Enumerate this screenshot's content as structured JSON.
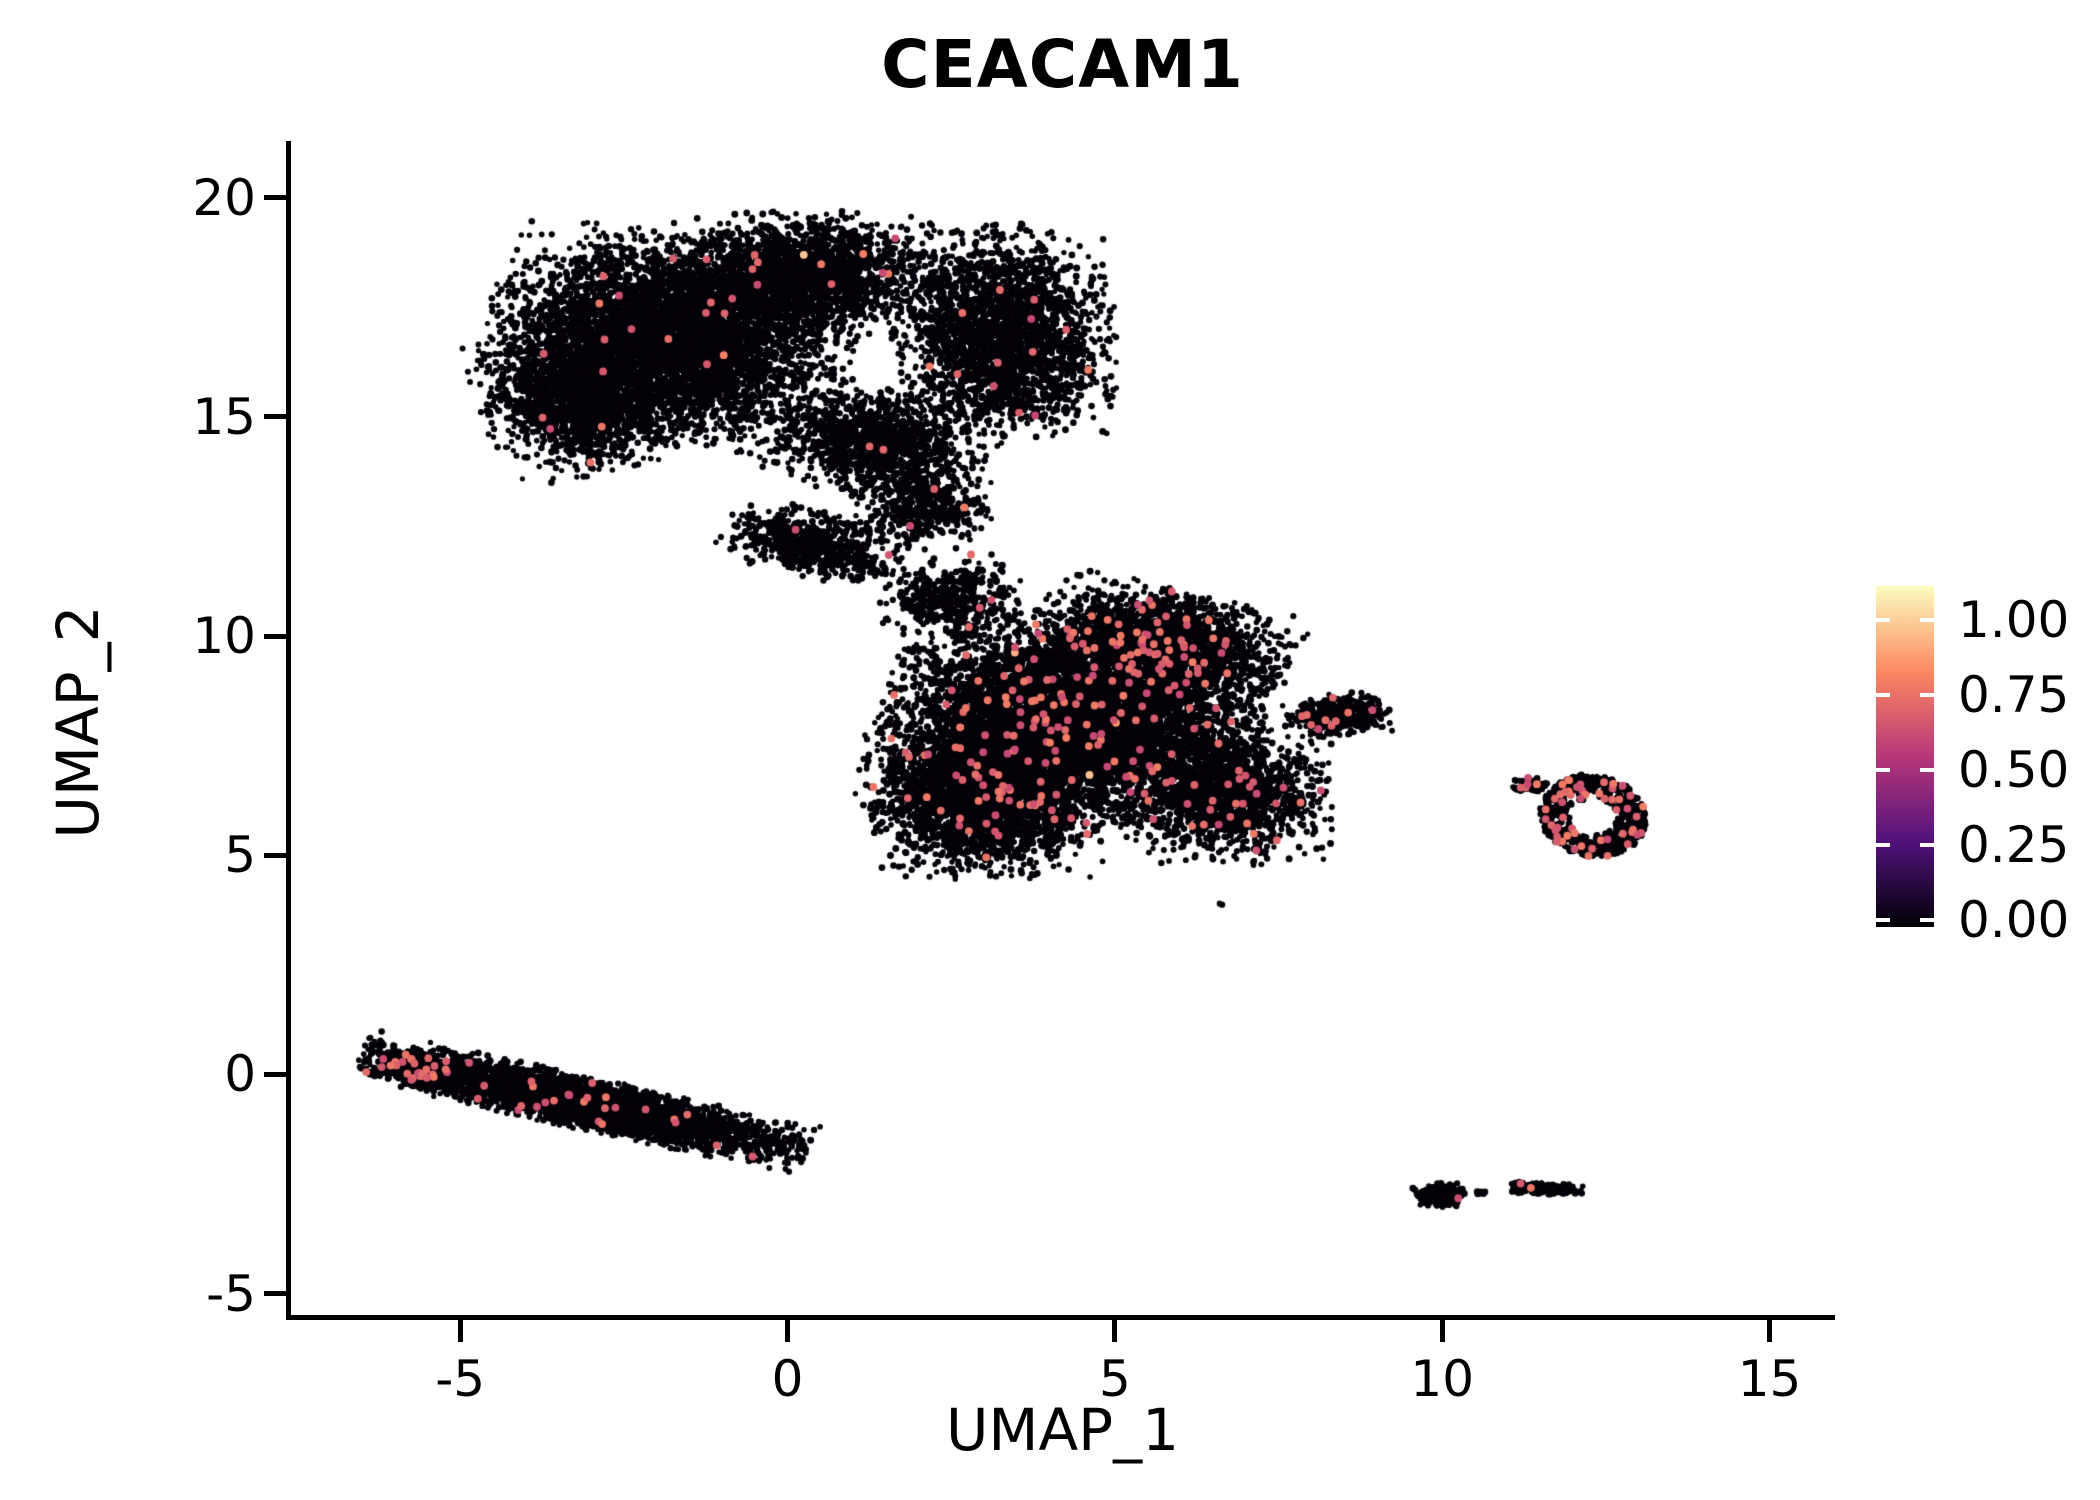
{
  "title": "CEACAM1",
  "chart_data": {
    "type": "scatter",
    "title": "CEACAM1",
    "xlabel": "UMAP_1",
    "ylabel": "UMAP_2",
    "xlim": [
      -7.6,
      16.0
    ],
    "ylim": [
      -5.6,
      21.2
    ],
    "xticks": [
      -5,
      0,
      5,
      10,
      15
    ],
    "yticks": [
      -5,
      0,
      5,
      10,
      15,
      20
    ],
    "grid": false,
    "legend_position": "right",
    "seed": 42,
    "base_color": "#050108",
    "point_radius_px": [
      2.6,
      3.5
    ],
    "expressed_point_radius_px": 3.9,
    "expressed_value_range": [
      0.55,
      0.72
    ],
    "colorbar": {
      "ticks": [
        "1.00",
        "0.75",
        "0.50",
        "0.25",
        "0.00"
      ],
      "tick_values": [
        1.0,
        0.75,
        0.5,
        0.25,
        0.0
      ],
      "stops": [
        {
          "v": 0.0,
          "c": "#000004"
        },
        {
          "v": 0.25,
          "c": "#51127C"
        },
        {
          "v": 0.5,
          "c": "#B73779"
        },
        {
          "v": 0.75,
          "c": "#FC8961"
        },
        {
          "v": 1.0,
          "c": "#FCFDBF"
        }
      ]
    },
    "clusters": [
      {
        "name": "upper-left-blob",
        "components": [
          {
            "cx": -1.8,
            "cy": 16.8,
            "rx": 2.6,
            "ry": 2.2,
            "angle": -10,
            "n": 5200,
            "expr_frac": 0.004
          },
          {
            "cx": -3.2,
            "cy": 15.4,
            "rx": 1.4,
            "ry": 1.6,
            "angle": 15,
            "n": 1500,
            "expr_frac": 0.004
          },
          {
            "cx": 0.3,
            "cy": 18.3,
            "rx": 1.9,
            "ry": 1.3,
            "angle": 0,
            "n": 1800,
            "expr_frac": 0.005
          },
          {
            "cx": 3.3,
            "cy": 16.9,
            "rx": 1.6,
            "ry": 2.3,
            "angle": 6,
            "n": 2600,
            "expr_frac": 0.004
          },
          {
            "cx": 1.4,
            "cy": 14.4,
            "rx": 1.6,
            "ry": 1.2,
            "angle": -20,
            "n": 1200,
            "expr_frac": 0.003
          },
          {
            "cx": 0.4,
            "cy": 12.1,
            "rx": 1.3,
            "ry": 0.7,
            "angle": -20,
            "n": 700,
            "expr_frac": 0.004
          },
          {
            "cx": 2.1,
            "cy": 12.9,
            "rx": 1.0,
            "ry": 0.9,
            "angle": 0,
            "n": 400,
            "expr_frac": 0.004
          }
        ]
      },
      {
        "name": "central-blob",
        "components": [
          {
            "cx": 4.3,
            "cy": 8.0,
            "rx": 2.7,
            "ry": 2.2,
            "angle": -15,
            "n": 6500,
            "expr_frac": 0.02
          },
          {
            "cx": 3.0,
            "cy": 6.3,
            "rx": 1.7,
            "ry": 1.7,
            "angle": 0,
            "n": 2500,
            "expr_frac": 0.012
          },
          {
            "cx": 5.7,
            "cy": 9.8,
            "rx": 1.9,
            "ry": 1.2,
            "angle": -18,
            "n": 2200,
            "expr_frac": 0.03
          },
          {
            "cx": 6.8,
            "cy": 6.4,
            "rx": 1.4,
            "ry": 1.5,
            "angle": 0,
            "n": 1400,
            "expr_frac": 0.015
          },
          {
            "cx": 8.4,
            "cy": 8.2,
            "rx": 0.8,
            "ry": 0.45,
            "angle": 8,
            "n": 400,
            "expr_frac": 0.03
          },
          {
            "cx": 2.5,
            "cy": 10.9,
            "rx": 1.0,
            "ry": 0.9,
            "angle": 0,
            "n": 450,
            "expr_frac": 0.01
          },
          {
            "cx": 6.6,
            "cy": 3.9,
            "rx": 0.08,
            "ry": 0.07,
            "angle": 0,
            "n": 3,
            "expr_frac": 0
          }
        ]
      },
      {
        "name": "right-ring-cluster",
        "components": [
          {
            "cx": 12.3,
            "cy": 5.9,
            "rx": 0.8,
            "ry": 0.95,
            "angle": 15,
            "n": 620,
            "expr_frac": 0.07,
            "hole": 0.38
          },
          {
            "cx": 11.35,
            "cy": 6.6,
            "rx": 0.3,
            "ry": 0.18,
            "angle": 0,
            "n": 70,
            "expr_frac": 0.1
          }
        ]
      },
      {
        "name": "lower-left-strip",
        "components": [
          {
            "cx": -3.1,
            "cy": -0.65,
            "rx": 3.3,
            "ry": 0.55,
            "angle": -18,
            "n": 3800,
            "expr_frac": 0.008
          },
          {
            "cx": -5.7,
            "cy": 0.15,
            "rx": 0.75,
            "ry": 0.4,
            "angle": -20,
            "n": 500,
            "expr_frac": 0.04
          }
        ]
      },
      {
        "name": "bottom-right-islands",
        "components": [
          {
            "cx": 9.95,
            "cy": -2.75,
            "rx": 0.38,
            "ry": 0.27,
            "angle": 0,
            "n": 280,
            "expr_frac": 0.012
          },
          {
            "cx": 11.55,
            "cy": -2.6,
            "rx": 0.55,
            "ry": 0.13,
            "angle": -4,
            "n": 220,
            "expr_frac": 0.005
          },
          {
            "cx": 10.6,
            "cy": -2.7,
            "rx": 0.08,
            "ry": 0.06,
            "angle": 0,
            "n": 12,
            "expr_frac": 0
          }
        ]
      }
    ]
  }
}
